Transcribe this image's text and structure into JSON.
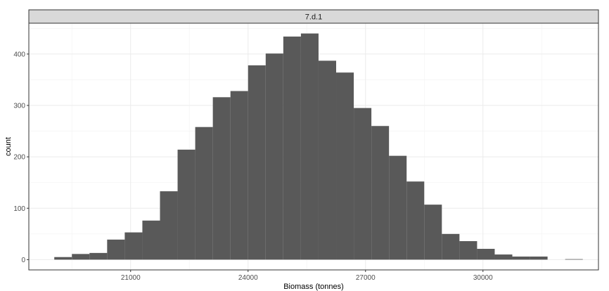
{
  "chart_data": {
    "type": "bar",
    "facet_label": "7.d.1",
    "xlabel": "Biomass (tonnes)",
    "ylabel": "count",
    "xlim": [
      18400,
      32950
    ],
    "ylim": [
      -20,
      460
    ],
    "x_ticks": [
      21000,
      24000,
      27000,
      30000
    ],
    "x_tick_labels": [
      "21000",
      "24000",
      "27000",
      "30000"
    ],
    "y_ticks": [
      0,
      100,
      200,
      300,
      400
    ],
    "y_tick_labels": [
      "0",
      "100",
      "200",
      "300",
      "400"
    ],
    "grid": true,
    "bar_color": "#595959",
    "bins": [
      {
        "x0": 19050,
        "x1": 19500,
        "count": 5
      },
      {
        "x0": 19500,
        "x1": 19950,
        "count": 11
      },
      {
        "x0": 19950,
        "x1": 20400,
        "count": 13
      },
      {
        "x0": 20400,
        "x1": 20850,
        "count": 39
      },
      {
        "x0": 20850,
        "x1": 21300,
        "count": 53
      },
      {
        "x0": 21300,
        "x1": 21750,
        "count": 76
      },
      {
        "x0": 21750,
        "x1": 22200,
        "count": 133
      },
      {
        "x0": 22200,
        "x1": 22650,
        "count": 214
      },
      {
        "x0": 22650,
        "x1": 23100,
        "count": 258
      },
      {
        "x0": 23100,
        "x1": 23550,
        "count": 316
      },
      {
        "x0": 23550,
        "x1": 24000,
        "count": 328
      },
      {
        "x0": 24000,
        "x1": 24450,
        "count": 378
      },
      {
        "x0": 24450,
        "x1": 24900,
        "count": 401
      },
      {
        "x0": 24900,
        "x1": 25350,
        "count": 434
      },
      {
        "x0": 25350,
        "x1": 25800,
        "count": 440
      },
      {
        "x0": 25800,
        "x1": 26250,
        "count": 387
      },
      {
        "x0": 26250,
        "x1": 26700,
        "count": 364
      },
      {
        "x0": 26700,
        "x1": 27150,
        "count": 295
      },
      {
        "x0": 27150,
        "x1": 27600,
        "count": 260
      },
      {
        "x0": 27600,
        "x1": 28050,
        "count": 202
      },
      {
        "x0": 28050,
        "x1": 28500,
        "count": 152
      },
      {
        "x0": 28500,
        "x1": 28950,
        "count": 107
      },
      {
        "x0": 28950,
        "x1": 29400,
        "count": 50
      },
      {
        "x0": 29400,
        "x1": 29850,
        "count": 36
      },
      {
        "x0": 29850,
        "x1": 30300,
        "count": 21
      },
      {
        "x0": 30300,
        "x1": 30750,
        "count": 10
      },
      {
        "x0": 30750,
        "x1": 31200,
        "count": 6
      },
      {
        "x0": 31200,
        "x1": 31650,
        "count": 6
      },
      {
        "x0": 31650,
        "x1": 32100,
        "count": 0
      },
      {
        "x0": 32100,
        "x1": 32550,
        "count": 1
      }
    ]
  }
}
